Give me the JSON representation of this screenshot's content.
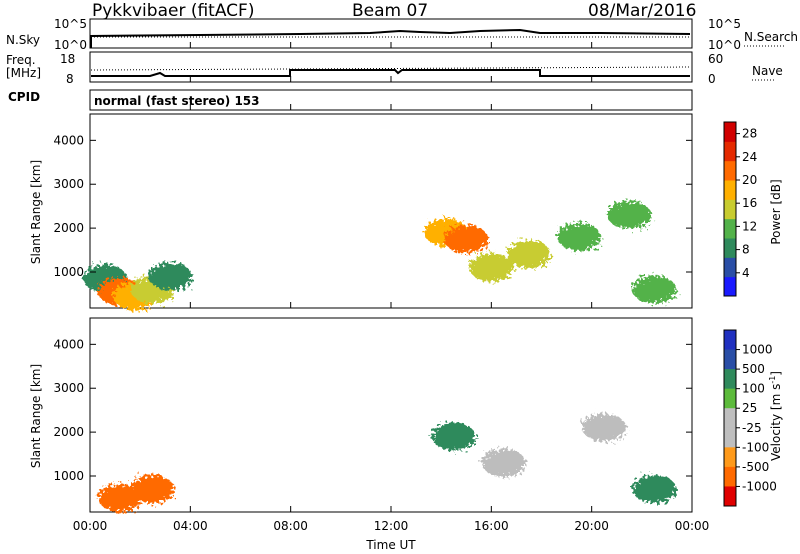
{
  "header": {
    "station": "Pykkvibaer (fitACF)",
    "beam": "Beam 07",
    "date": "08/Mar/2016"
  },
  "noise_panel": {
    "left_label": "N.Sky",
    "right_label": "N.Search",
    "tick_top": "10^5",
    "tick_bottom": "10^0",
    "right_tick_top": "10^5",
    "right_tick_bottom": "10^0"
  },
  "freq_panel": {
    "left_label_1": "Freq.",
    "left_label_2": "[MHz]",
    "tick_high": "18",
    "tick_low": "8",
    "right_label": "Nave",
    "right_tick_high": "60",
    "right_tick_low": "0"
  },
  "cpid": {
    "label": "CPID",
    "value": "normal (fast stereo) 153"
  },
  "colors": {
    "power_scale": [
      "#1a1aff",
      "#2a4ea6",
      "#2f8a5c",
      "#53b24a",
      "#c8cc30",
      "#ffb000",
      "#ff6a00",
      "#e52a00",
      "#d10000"
    ],
    "velocity_scale": [
      "#e00000",
      "#ff6a00",
      "#ff9a1a",
      "#bfbfbf",
      "#bfbfbf",
      "#5dbb3c",
      "#2f8a5c",
      "#2a4ea6",
      "#2030c0"
    ],
    "ground_scatter": "#bdbdbd"
  },
  "chart_data": [
    {
      "type": "heatmap",
      "title": "Power",
      "xlabel": "Time UT",
      "ylabel": "Slant Range [km]",
      "x_ticks": [
        "00:00",
        "04:00",
        "08:00",
        "12:00",
        "16:00",
        "20:00",
        "00:00"
      ],
      "y_ticks": [
        "1000",
        "2000",
        "3000",
        "4000"
      ],
      "ylim": [
        180,
        4600
      ],
      "colorbar": {
        "label": "Power [dB]",
        "ticks": [
          "4",
          "8",
          "12",
          "16",
          "20",
          "24",
          "28"
        ],
        "range": [
          0,
          30
        ]
      },
      "blobs": [
        {
          "t": 0.6,
          "r": 850,
          "value": 6
        },
        {
          "t": 1.2,
          "r": 550,
          "value": 22
        },
        {
          "t": 1.8,
          "r": 450,
          "value": 20
        },
        {
          "t": 2.5,
          "r": 600,
          "value": 16
        },
        {
          "t": 3.2,
          "r": 900,
          "value": 8
        },
        {
          "t": 14.2,
          "r": 1900,
          "value": 18
        },
        {
          "t": 15.0,
          "r": 1750,
          "value": 22
        },
        {
          "t": 16.0,
          "r": 1100,
          "value": 14
        },
        {
          "t": 17.5,
          "r": 1400,
          "value": 16
        },
        {
          "t": 19.5,
          "r": 1800,
          "value": 12
        },
        {
          "t": 21.5,
          "r": 2300,
          "value": 10
        },
        {
          "t": 22.5,
          "r": 600,
          "value": 12
        }
      ]
    },
    {
      "type": "heatmap",
      "title": "Velocity",
      "xlabel": "Time UT",
      "ylabel": "Slant Range [km]",
      "x_ticks": [
        "00:00",
        "04:00",
        "08:00",
        "12:00",
        "16:00",
        "20:00",
        "00:00"
      ],
      "y_ticks": [
        "1000",
        "2000",
        "3000",
        "4000"
      ],
      "ylim": [
        180,
        4600
      ],
      "colorbar": {
        "label": "Velocity [m s^-1]",
        "ticks": [
          "1000",
          "500",
          "100",
          "25",
          "-25",
          "-100",
          "-500",
          "-1000"
        ]
      },
      "blobs": [
        {
          "t": 1.2,
          "r": 500,
          "value": -300
        },
        {
          "t": 2.5,
          "r": 700,
          "value": -200
        },
        {
          "t": 14.5,
          "r": 1900,
          "value": 200
        },
        {
          "t": 16.5,
          "r": 1300,
          "value": 0
        },
        {
          "t": 20.5,
          "r": 2100,
          "value": 0
        },
        {
          "t": 22.5,
          "r": 700,
          "value": 400
        }
      ]
    }
  ]
}
